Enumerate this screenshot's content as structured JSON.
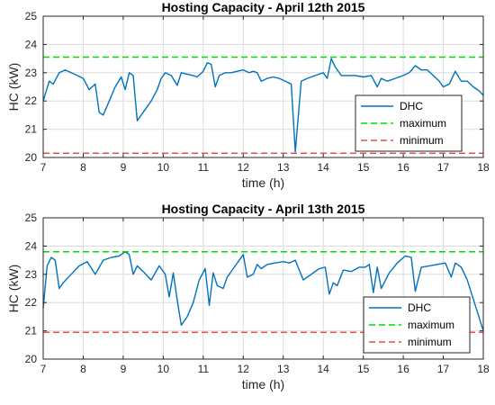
{
  "colors": {
    "dhc": "#0072BD",
    "maximum": "#00DD00",
    "minimum": "#E85050",
    "grid": "#dcdcdc",
    "axis": "#262626"
  },
  "chart_data": [
    {
      "type": "line",
      "title": "Hosting Capacity - April 12th 2015",
      "xlabel": "time (h)",
      "ylabel": "HC (kW)",
      "xlim": [
        7,
        18
      ],
      "ylim": [
        20,
        25
      ],
      "xticks": [
        "7",
        "8",
        "9",
        "10",
        "11",
        "12",
        "13",
        "14",
        "15",
        "16",
        "17",
        "18"
      ],
      "yticks": [
        "20",
        "21",
        "22",
        "23",
        "24",
        "25"
      ],
      "grid": true,
      "legend_position": "bottom-right",
      "legend": [
        "DHC",
        "maximum",
        "minimum"
      ],
      "series": [
        {
          "name": "DHC",
          "style": "solid",
          "x": [
            7.0,
            7.15,
            7.25,
            7.4,
            7.55,
            7.7,
            7.85,
            8.0,
            8.15,
            8.3,
            8.4,
            8.5,
            8.65,
            8.8,
            8.95,
            9.05,
            9.15,
            9.25,
            9.35,
            9.5,
            9.7,
            9.85,
            9.95,
            10.05,
            10.2,
            10.35,
            10.45,
            10.6,
            10.75,
            10.85,
            11.0,
            11.1,
            11.2,
            11.3,
            11.4,
            11.55,
            11.7,
            11.85,
            12.0,
            12.15,
            12.25,
            12.35,
            12.45,
            12.6,
            12.75,
            12.9,
            13.05,
            13.2,
            13.3,
            13.45,
            13.6,
            13.8,
            14.0,
            14.1,
            14.2,
            14.3,
            14.45,
            14.6,
            14.8,
            15.0,
            15.2,
            15.35,
            15.45,
            15.6,
            15.8,
            16.0,
            16.15,
            16.3,
            16.45,
            16.6,
            16.75,
            16.9,
            17.0,
            17.15,
            17.3,
            17.45,
            17.6,
            17.75,
            17.9,
            18.0
          ],
          "y": [
            22.0,
            22.7,
            22.6,
            23.0,
            23.1,
            23.0,
            22.9,
            22.8,
            22.4,
            22.6,
            21.6,
            21.5,
            22.0,
            22.5,
            22.85,
            22.4,
            23.0,
            22.9,
            21.3,
            21.6,
            22.0,
            22.4,
            22.8,
            23.0,
            22.9,
            22.55,
            23.0,
            22.95,
            22.9,
            22.85,
            23.05,
            23.35,
            23.3,
            22.5,
            22.9,
            23.0,
            23.0,
            23.05,
            23.1,
            23.0,
            23.05,
            23.0,
            22.7,
            22.8,
            22.85,
            22.8,
            22.7,
            22.6,
            20.2,
            22.7,
            22.8,
            22.9,
            23.0,
            22.8,
            23.5,
            23.2,
            22.9,
            22.9,
            22.9,
            22.85,
            22.9,
            22.5,
            22.8,
            22.7,
            22.8,
            22.9,
            23.0,
            23.25,
            23.1,
            23.1,
            22.9,
            22.7,
            22.5,
            22.6,
            23.05,
            22.7,
            22.7,
            22.5,
            22.35,
            22.2
          ]
        },
        {
          "name": "maximum",
          "style": "dashed",
          "x": [
            7,
            18
          ],
          "y": [
            23.55,
            23.55
          ]
        },
        {
          "name": "minimum",
          "style": "dashed",
          "x": [
            7,
            18
          ],
          "y": [
            20.15,
            20.15
          ]
        }
      ]
    },
    {
      "type": "line",
      "title": "Hosting Capacity - April 13th 2015",
      "xlabel": "time (h)",
      "ylabel": "HC (kW)",
      "xlim": [
        7,
        18
      ],
      "ylim": [
        20,
        25
      ],
      "xticks": [
        "7",
        "8",
        "9",
        "10",
        "11",
        "12",
        "13",
        "14",
        "15",
        "16",
        "17",
        "18"
      ],
      "yticks": [
        "20",
        "21",
        "22",
        "23",
        "24",
        "25"
      ],
      "grid": true,
      "legend_position": "bottom-right",
      "legend": [
        "DHC",
        "maximum",
        "minimum"
      ],
      "series": [
        {
          "name": "DHC",
          "style": "solid",
          "x": [
            7.0,
            7.1,
            7.2,
            7.3,
            7.4,
            7.5,
            7.7,
            7.9,
            8.1,
            8.3,
            8.5,
            8.7,
            8.9,
            9.05,
            9.15,
            9.25,
            9.35,
            9.5,
            9.7,
            9.9,
            10.05,
            10.15,
            10.25,
            10.35,
            10.45,
            10.6,
            10.75,
            10.9,
            11.05,
            11.15,
            11.25,
            11.35,
            11.5,
            11.6,
            11.8,
            12.0,
            12.1,
            12.25,
            12.35,
            12.45,
            12.6,
            12.8,
            13.0,
            13.15,
            13.3,
            13.5,
            13.7,
            13.9,
            14.05,
            14.15,
            14.25,
            14.35,
            14.5,
            14.7,
            14.9,
            15.05,
            15.15,
            15.25,
            15.35,
            15.45,
            15.65,
            15.85,
            16.05,
            16.2,
            16.3,
            16.45,
            16.65,
            16.85,
            17.05,
            17.2,
            17.3,
            17.45,
            17.6,
            17.8,
            18.0
          ],
          "y": [
            21.8,
            23.3,
            23.6,
            23.5,
            22.5,
            22.7,
            23.0,
            23.3,
            23.45,
            23.0,
            23.5,
            23.6,
            23.65,
            23.8,
            23.7,
            23.0,
            23.3,
            23.1,
            22.8,
            23.3,
            23.0,
            22.2,
            23.05,
            22.1,
            21.2,
            21.5,
            22.0,
            22.8,
            23.2,
            21.9,
            23.05,
            22.6,
            22.5,
            22.9,
            23.3,
            23.7,
            22.9,
            23.0,
            23.35,
            23.2,
            23.35,
            23.4,
            23.45,
            23.4,
            23.5,
            22.8,
            23.0,
            23.2,
            23.25,
            22.3,
            22.7,
            22.6,
            23.15,
            23.1,
            23.25,
            23.25,
            23.35,
            22.35,
            23.25,
            22.5,
            23.05,
            23.4,
            23.65,
            23.6,
            22.4,
            23.25,
            23.3,
            23.35,
            23.4,
            22.9,
            23.4,
            23.25,
            22.8,
            21.9,
            21.0
          ]
        },
        {
          "name": "maximum",
          "style": "dashed",
          "x": [
            7,
            18
          ],
          "y": [
            23.8,
            23.8
          ]
        },
        {
          "name": "minimum",
          "style": "dashed",
          "x": [
            7,
            18
          ],
          "y": [
            20.95,
            20.95
          ]
        }
      ]
    }
  ]
}
